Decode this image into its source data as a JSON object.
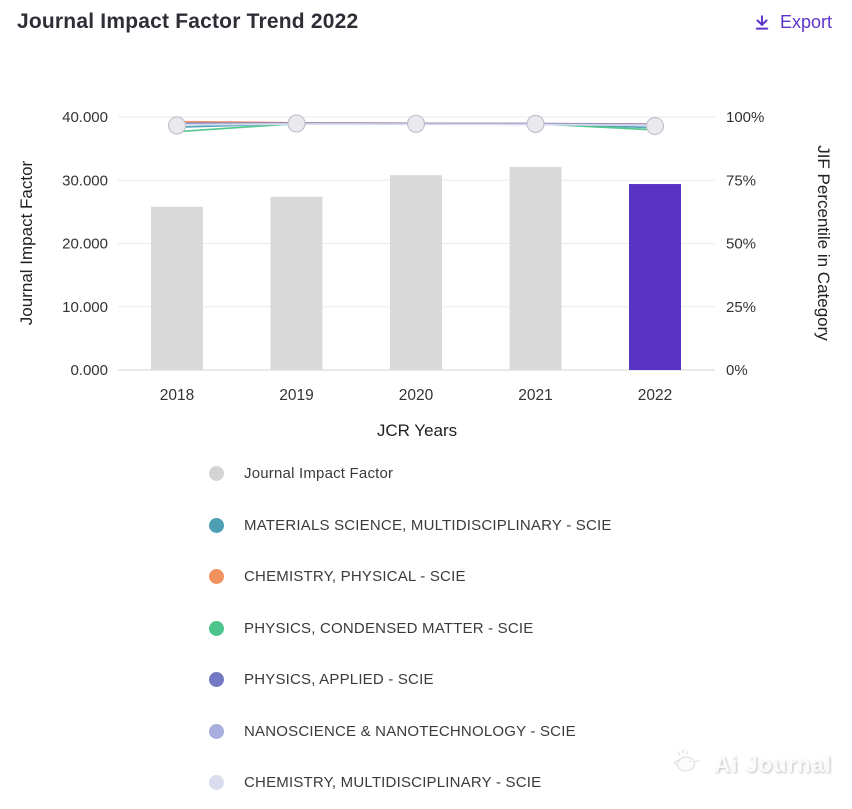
{
  "header": {
    "title": "Journal Impact Factor Trend 2022",
    "export_label": "Export",
    "accent_color": "#5e33c8"
  },
  "chart_data": {
    "type": "bar+line",
    "categories": [
      "2018",
      "2019",
      "2020",
      "2021",
      "2022"
    ],
    "bar_series": {
      "name": "Journal Impact Factor",
      "values": [
        25.8,
        27.4,
        30.8,
        32.1,
        29.4
      ],
      "default_color": "#d9d9d9",
      "highlight_color": "#5833c4",
      "highlight_index": 4
    },
    "line_series": [
      {
        "name": "MATERIALS SCIENCE, MULTIDISCIPLINARY - SCIE",
        "color": "#4d9fb3",
        "values": [
          96.0,
          97.3,
          97.4,
          97.3,
          95.8
        ]
      },
      {
        "name": "CHEMISTRY, PHYSICAL - SCIE",
        "color": "#f0915e",
        "values": [
          98.2,
          97.7,
          97.5,
          97.4,
          97.2
        ]
      },
      {
        "name": "PHYSICS, CONDENSED MATTER - SCIE",
        "color": "#4cc48b",
        "values": [
          94.2,
          97.4,
          97.3,
          97.3,
          94.9
        ]
      },
      {
        "name": "PHYSICS, APPLIED - SCIE",
        "color": "#7379c2",
        "values": [
          97.5,
          97.6,
          97.4,
          97.4,
          97.1
        ]
      },
      {
        "name": "NANOSCIENCE & NANOTECHNOLOGY - SCIE",
        "color": "#a8aedd",
        "values": [
          97.1,
          97.4,
          97.2,
          97.2,
          96.9
        ]
      },
      {
        "name": "CHEMISTRY, MULTIDISCIPLINARY - SCIE",
        "color": "#dadded",
        "values": [
          96.9,
          97.2,
          97.1,
          97.0,
          96.7
        ]
      }
    ],
    "left_axis": {
      "label": "Journal Impact Factor",
      "ticks": [
        "40.000",
        "30.000",
        "20.000",
        "10.000",
        "0.000"
      ],
      "min": 0,
      "max": 40
    },
    "right_axis": {
      "label": "JIF Percentile in Category",
      "ticks": [
        "100%",
        "75%",
        "50%",
        "25%",
        "0%"
      ],
      "min": 0,
      "max": 100
    },
    "xlabel": "JCR Years",
    "grid_color": "#ebebeb",
    "axis_line_color": "#dcdcdc",
    "tick_label_color": "#333333",
    "axis_title_color": "#222222",
    "marker_fill": "#e9e9ee",
    "marker_stroke": "#bfbfca",
    "legend_position": "bottom"
  },
  "legend": {
    "items": [
      {
        "label": "Journal Impact Factor",
        "color": "#d4d4d6"
      },
      {
        "label": "MATERIALS SCIENCE, MULTIDISCIPLINARY - SCIE",
        "color": "#4d9fb3"
      },
      {
        "label": "CHEMISTRY, PHYSICAL - SCIE",
        "color": "#f0915e"
      },
      {
        "label": "PHYSICS, CONDENSED MATTER - SCIE",
        "color": "#4cc48b"
      },
      {
        "label": "PHYSICS, APPLIED - SCIE",
        "color": "#7379c2"
      },
      {
        "label": "NANOSCIENCE & NANOTECHNOLOGY - SCIE",
        "color": "#a8aedd"
      },
      {
        "label": "CHEMISTRY, MULTIDISCIPLINARY - SCIE",
        "color": "#dadded"
      }
    ]
  },
  "watermark": {
    "text": "Ai Journal"
  }
}
